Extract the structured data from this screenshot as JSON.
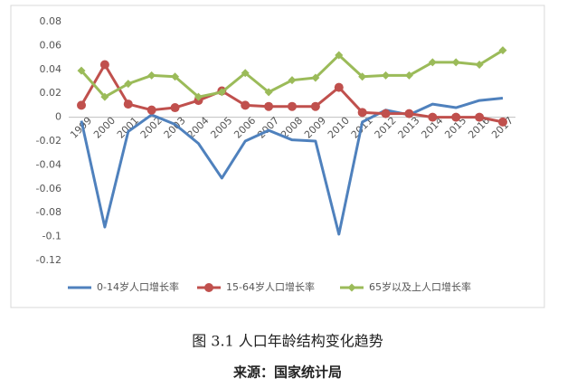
{
  "chart_data": {
    "type": "line",
    "categories": [
      "1999",
      "2000",
      "2001",
      "2002",
      "2003",
      "2004",
      "2005",
      "2006",
      "2007",
      "2008",
      "2009",
      "2010",
      "2011",
      "2012",
      "2013",
      "2014",
      "2015",
      "2016",
      "2017"
    ],
    "series": [
      {
        "name": "0-14岁人口增长率",
        "color": "#4f81bd",
        "marker": "none",
        "values": [
          -0.003,
          -0.092,
          -0.012,
          0.002,
          -0.006,
          -0.022,
          -0.051,
          -0.02,
          -0.011,
          -0.019,
          -0.02,
          -0.098,
          -0.004,
          0.006,
          0.002,
          0.011,
          0.008,
          0.014,
          0.016
        ]
      },
      {
        "name": "15-64岁人口增长率",
        "color": "#c0504d",
        "marker": "circle",
        "values": [
          0.01,
          0.044,
          0.011,
          0.006,
          0.008,
          0.014,
          0.022,
          0.01,
          0.009,
          0.009,
          0.009,
          0.025,
          0.004,
          0.003,
          0.003,
          0.0,
          0.0,
          0.0,
          -0.004
        ]
      },
      {
        "name": "65岁以及上人口增长率",
        "color": "#9bbb59",
        "marker": "diamond",
        "values": [
          0.039,
          0.017,
          0.028,
          0.035,
          0.034,
          0.017,
          0.021,
          0.037,
          0.021,
          0.031,
          0.033,
          0.052,
          0.034,
          0.035,
          0.035,
          0.046,
          0.046,
          0.044,
          0.056
        ]
      }
    ],
    "ylim": [
      -0.12,
      0.08
    ],
    "yticks": [
      0.08,
      0.06,
      0.04,
      0.02,
      0,
      -0.02,
      -0.04,
      -0.06,
      -0.08,
      -0.1,
      -0.12
    ],
    "grid": false,
    "legend": "bottom",
    "caption": "图 3.1  人口年龄结构变化趋势",
    "source": "来源：国家统计局"
  }
}
